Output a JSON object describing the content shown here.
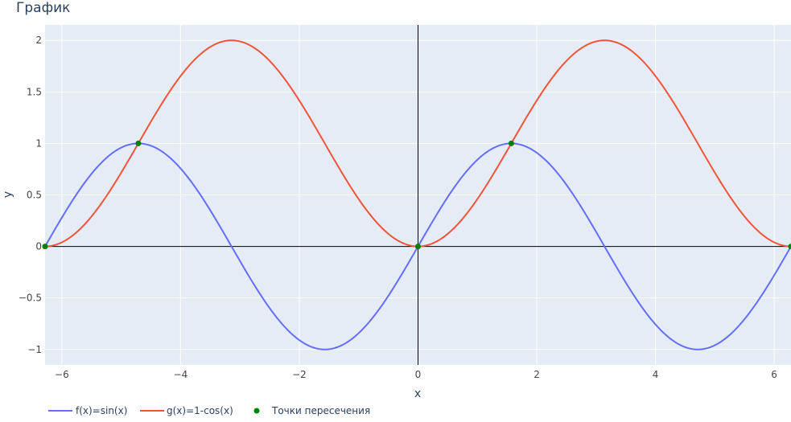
{
  "chart_data": {
    "type": "line",
    "title": "График",
    "xlabel": "x",
    "ylabel": "y",
    "xlim": [
      -6.283,
      6.283
    ],
    "ylim": [
      -1.15,
      2.15
    ],
    "xticks": [
      -6,
      -4,
      -2,
      0,
      2,
      4,
      6
    ],
    "xtick_labels": [
      "−6",
      "−4",
      "−2",
      "0",
      "2",
      "4",
      "6"
    ],
    "yticks": [
      -1,
      -0.5,
      0,
      0.5,
      1,
      1.5,
      2
    ],
    "ytick_labels": [
      "−1",
      "−0.5",
      "0",
      "0.5",
      "1",
      "1.5",
      "2"
    ],
    "grid": true,
    "legend_position": "bottom-left",
    "colors": {
      "plot_bg": "#e5ecf6",
      "grid": "#ffffff",
      "zeroline": "#000000",
      "sin": "#636efa",
      "cos": "#ef553b",
      "points": "#008000"
    },
    "series": [
      {
        "name": "f(x)=sin(x)",
        "x": [
          -6.283,
          -5.498,
          -4.712,
          -3.927,
          -3.142,
          -2.356,
          -1.571,
          -0.785,
          0,
          0.785,
          1.571,
          2.356,
          3.142,
          3.927,
          4.712,
          5.498,
          6.283
        ],
        "y": [
          0,
          0.707,
          1,
          0.707,
          0,
          -0.707,
          -1,
          -0.707,
          0,
          0.707,
          1,
          0.707,
          0,
          -0.707,
          -1,
          -0.707,
          0
        ]
      },
      {
        "name": "g(x)=1-cos(x)",
        "x": [
          -6.283,
          -5.498,
          -4.712,
          -3.927,
          -3.142,
          -2.356,
          -1.571,
          -0.785,
          0,
          0.785,
          1.571,
          2.356,
          3.142,
          3.927,
          4.712,
          5.498,
          6.283
        ],
        "y": [
          0,
          0.293,
          1,
          1.707,
          2,
          1.707,
          1,
          0.293,
          0,
          0.293,
          1,
          1.707,
          2,
          1.707,
          1,
          0.293,
          0
        ]
      },
      {
        "name": "Точки пересечения",
        "mode": "markers",
        "x": [
          -6.283,
          -4.712,
          0,
          1.571,
          6.283
        ],
        "y": [
          0,
          1,
          0,
          1,
          0
        ]
      }
    ]
  }
}
